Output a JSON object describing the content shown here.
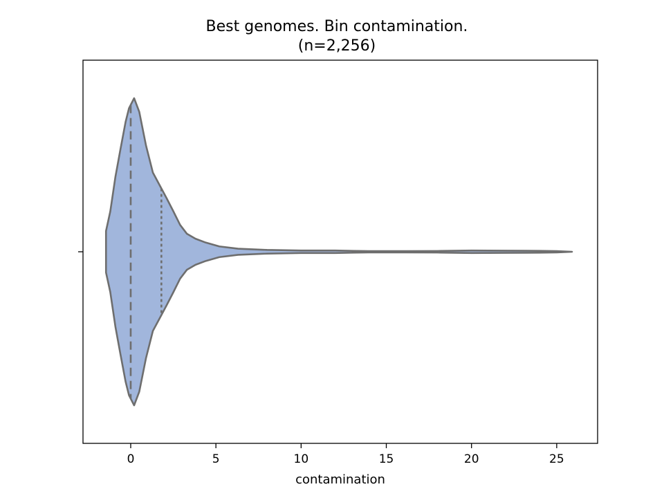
{
  "chart_data": {
    "type": "violin",
    "title": "Best genomes. Bin contamination.",
    "subtitle": "(n=2,256)",
    "xlabel": "contamination",
    "ylabel": "",
    "xlim": [
      -2.8,
      27.4
    ],
    "xticks": [
      0,
      5,
      10,
      15,
      20,
      25
    ],
    "xtick_labels": [
      "0",
      "5",
      "10",
      "15",
      "20",
      "25"
    ],
    "orientation": "horizontal",
    "fill_color": "#a1b6dc",
    "line_color": "#6e6e6e",
    "quartiles": {
      "q1": 0.0,
      "median": 0.0,
      "q3": 1.8
    },
    "density_profile": {
      "x": [
        -1.45,
        -1.45,
        -1.2,
        -0.9,
        -0.6,
        -0.3,
        -0.1,
        0.2,
        0.5,
        0.9,
        1.3,
        1.7,
        2.1,
        2.5,
        2.9,
        3.3,
        3.8,
        4.4,
        5.2,
        6.3,
        8.0,
        10.0,
        12.0,
        14.0,
        16.0,
        18.0,
        20.0,
        22.0,
        24.0,
        25.0,
        25.9
      ],
      "half_width": [
        0.12,
        0.135,
        0.262,
        0.487,
        0.669,
        0.846,
        0.935,
        1.0,
        0.912,
        0.691,
        0.516,
        0.433,
        0.35,
        0.264,
        0.175,
        0.117,
        0.085,
        0.06,
        0.035,
        0.02,
        0.012,
        0.008,
        0.008,
        0.004,
        0.004,
        0.005,
        0.008,
        0.007,
        0.006,
        0.004,
        0.0
      ]
    }
  }
}
